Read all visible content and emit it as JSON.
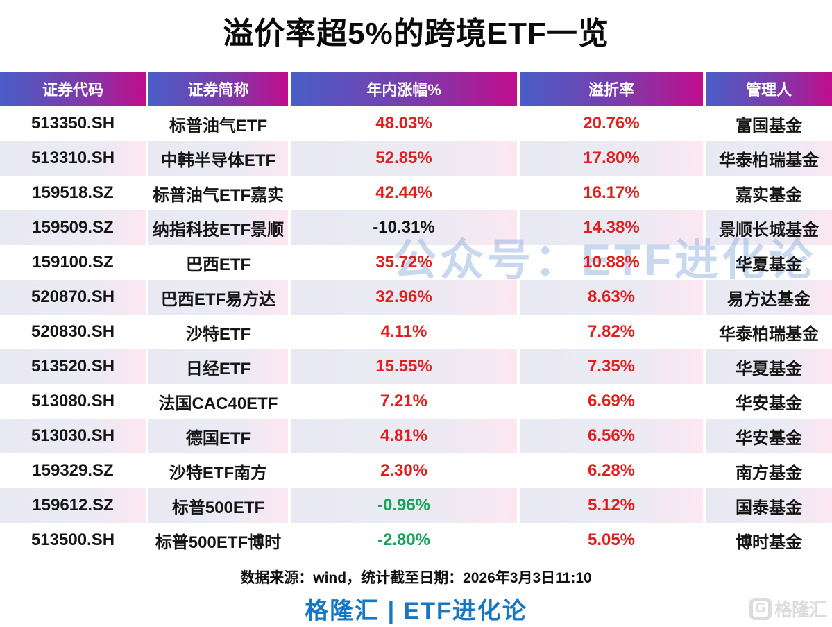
{
  "title": "溢价率超5%的跨境ETF一览",
  "watermark": "公众号：ETF进化论",
  "table": {
    "headers": [
      "证券代码",
      "证券简称",
      "年内涨幅%",
      "溢折率",
      "管理人"
    ],
    "rows": [
      {
        "code": "513350.SH",
        "name": "标普油气ETF",
        "ytd": "48.03%",
        "ytd_color": "red",
        "premium": "20.76%",
        "premium_color": "red",
        "manager": "富国基金"
      },
      {
        "code": "513310.SH",
        "name": "中韩半导体ETF",
        "ytd": "52.85%",
        "ytd_color": "red",
        "premium": "17.80%",
        "premium_color": "red",
        "manager": "华泰柏瑞基金"
      },
      {
        "code": "159518.SZ",
        "name": "标普油气ETF嘉实",
        "ytd": "42.44%",
        "ytd_color": "red",
        "premium": "16.17%",
        "premium_color": "red",
        "manager": "嘉实基金"
      },
      {
        "code": "159509.SZ",
        "name": "纳指科技ETF景顺",
        "ytd": "-10.31%",
        "ytd_color": "black",
        "premium": "14.38%",
        "premium_color": "red",
        "manager": "景顺长城基金"
      },
      {
        "code": "159100.SZ",
        "name": "巴西ETF",
        "ytd": "35.72%",
        "ytd_color": "red",
        "premium": "10.88%",
        "premium_color": "red",
        "manager": "华夏基金"
      },
      {
        "code": "520870.SH",
        "name": "巴西ETF易方达",
        "ytd": "32.96%",
        "ytd_color": "red",
        "premium": "8.63%",
        "premium_color": "red",
        "manager": "易方达基金"
      },
      {
        "code": "520830.SH",
        "name": "沙特ETF",
        "ytd": "4.11%",
        "ytd_color": "red",
        "premium": "7.82%",
        "premium_color": "red",
        "manager": "华泰柏瑞基金"
      },
      {
        "code": "513520.SH",
        "name": "日经ETF",
        "ytd": "15.55%",
        "ytd_color": "red",
        "premium": "7.35%",
        "premium_color": "red",
        "manager": "华夏基金"
      },
      {
        "code": "513080.SH",
        "name": "法国CAC40ETF",
        "ytd": "7.21%",
        "ytd_color": "red",
        "premium": "6.69%",
        "premium_color": "red",
        "manager": "华安基金"
      },
      {
        "code": "513030.SH",
        "name": "德国ETF",
        "ytd": "4.81%",
        "ytd_color": "red",
        "premium": "6.56%",
        "premium_color": "red",
        "manager": "华安基金"
      },
      {
        "code": "159329.SZ",
        "name": "沙特ETF南方",
        "ytd": "2.30%",
        "ytd_color": "red",
        "premium": "6.28%",
        "premium_color": "red",
        "manager": "南方基金"
      },
      {
        "code": "159612.SZ",
        "name": "标普500ETF",
        "ytd": "-0.96%",
        "ytd_color": "green",
        "premium": "5.12%",
        "premium_color": "red",
        "manager": "国泰基金"
      },
      {
        "code": "513500.SH",
        "name": "标普500ETF博时",
        "ytd": "-2.80%",
        "ytd_color": "green",
        "premium": "5.05%",
        "premium_color": "red",
        "manager": "博时基金"
      }
    ]
  },
  "footer": {
    "source": "数据来源：wind，统计截至日期：2026年3月3日11:10",
    "brand": "格隆汇 | ETF进化论",
    "logo_letter": "G",
    "logo_text": "格隆汇"
  },
  "colors": {
    "header_gradient_start": "#4a5ec7",
    "header_gradient_end": "#c10d8c",
    "positive_red": "#e01e1e",
    "negative_green": "#16a45a",
    "brand_blue": "#1678c2",
    "even_row_start": "#e9e9f3",
    "even_row_end": "#fce7f2"
  }
}
